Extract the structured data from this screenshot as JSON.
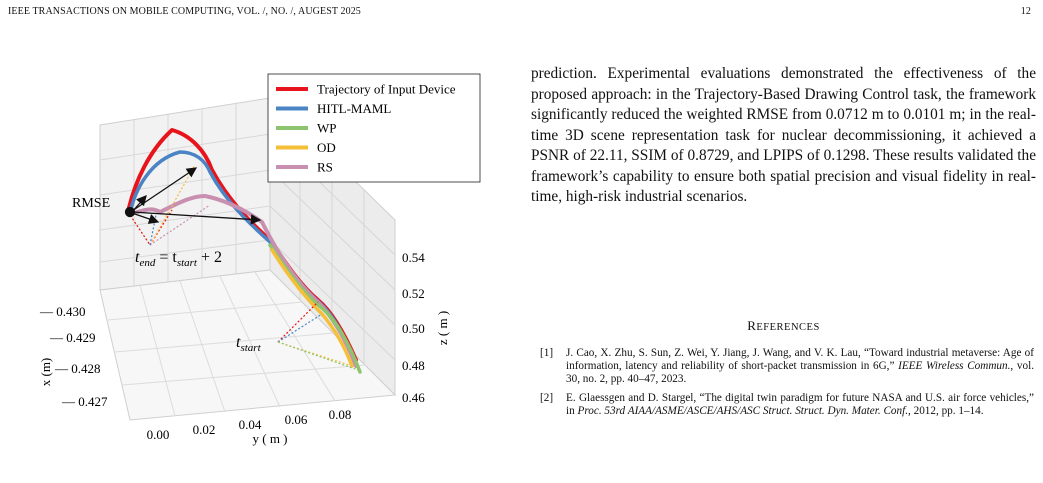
{
  "header": {
    "journal": "IEEE TRANSACTIONS ON MOBILE COMPUTING,  VOL. /, NO. /, AUGEST 2025",
    "page_number": "12"
  },
  "figure": {
    "legend": [
      {
        "label": "Trajectory of  Input Device",
        "color": "#e8141b"
      },
      {
        "label": "HITL-MAML",
        "color": "#4a84c4"
      },
      {
        "label": "WP",
        "color": "#8dc46e"
      },
      {
        "label": "OD",
        "color": "#f6bf3a"
      },
      {
        "label": "RS",
        "color": "#c88fb0"
      }
    ],
    "annotations": {
      "rmse": "RMSE",
      "t_end": "t",
      "t_end_sub": "end",
      "t_end_eq": " = t",
      "t_end_sub2": "start",
      "t_end_tail": " + 2",
      "t_start": "t",
      "t_start_sub": "start"
    },
    "x_axis": {
      "label": "x (m)",
      "ticks": [
        "0.430",
        "0.429",
        "0.428",
        "0.427"
      ]
    },
    "y_axis": {
      "label": "y ( m )",
      "ticks": [
        "0.00",
        "0.02",
        "0.04",
        "0.06",
        "0.08"
      ]
    },
    "z_axis": {
      "label": "z ( m )",
      "ticks": [
        "0.54",
        "0.52",
        "0.50",
        "0.48",
        "0.46"
      ]
    }
  },
  "body": {
    "paragraph": "prediction. Experimental evaluations demonstrated the effectiveness of the proposed approach: in the Trajectory-Based Drawing Control task, the framework significantly reduced the weighted RMSE from 0.0712 m to 0.0101 m; in the real-time 3D scene representation task for nuclear decommissioning, it achieved a PSNR of 22.11, SSIM of 0.8729, and LPIPS of 0.1298. These results validated the framework’s capability to ensure both spatial precision and visual fidelity in real-time, high-risk industrial scenarios."
  },
  "references": {
    "title_first": "R",
    "title_rest": "EFERENCES",
    "items": [
      {
        "num": "[1]",
        "text": "J. Cao, X. Zhu, S. Sun, Z. Wei, Y. Jiang, J. Wang, and V. K. Lau, “Toward industrial metaverse: Age of information, latency and reliability of short-packet transmission in 6G,” ",
        "venue": "IEEE Wireless Commun.",
        "tail": ", vol. 30, no. 2, pp. 40–47, 2023."
      },
      {
        "num": "[2]",
        "text": "E. Glaessgen and D. Stargel, “The digital twin paradigm for future NASA and U.S. air force vehicles,” in ",
        "venue": "Proc. 53rd AIAA/ASME/ASCE/AHS/ASC Struct. Struct. Dyn. Mater. Conf.",
        "tail": ", 2012, pp. 1–14."
      }
    ]
  }
}
